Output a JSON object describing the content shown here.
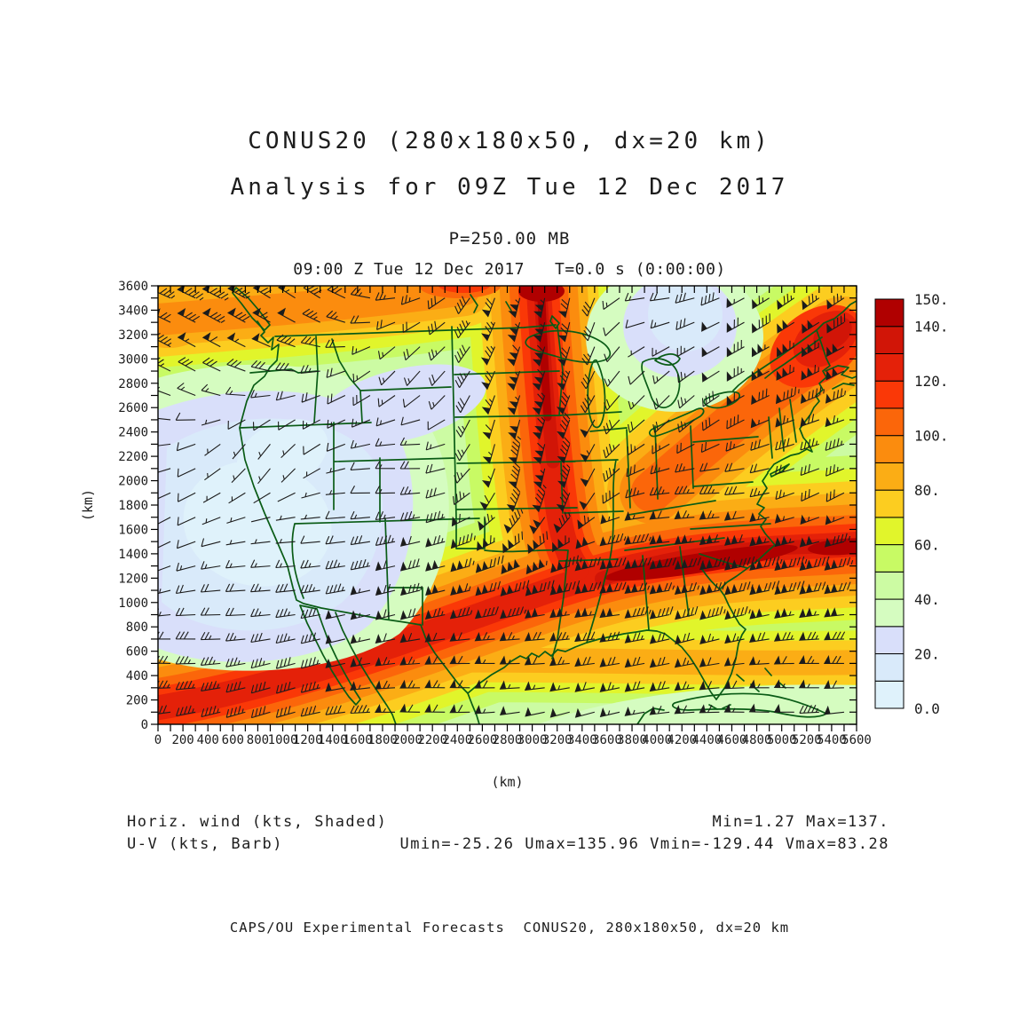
{
  "title": {
    "line1": "CONUS20 (280x180x50, dx=20 km)",
    "line2": "Analysis for 09Z Tue 12 Dec 2017"
  },
  "level_line": "P=250.00 MB",
  "time_line": "09:00 Z Tue 12 Dec 2017   T=0.0 s (0:00:00)",
  "caption": {
    "left1": "Horiz. wind (kts, Shaded)",
    "left2": "U-V (kts, Barb)",
    "right1": "Min=1.27 Max=137.",
    "right2": "Umin=-25.26 Umax=135.96 Vmin=-129.44 Vmax=83.28"
  },
  "footer": "CAPS/OU Experimental Forecasts  CONUS20, 280x180x50, dx=20 km",
  "chart_data": {
    "type": "heatmap",
    "field_shaded": "Horizontal wind speed (kts), shaded",
    "field_barbs": "U-V wind (kts), barbs",
    "pressure_level_mb": 250.0,
    "valid_time": "09:00 Z Tue 12 Dec 2017",
    "forecast_seconds": 0.0,
    "grid": "280x180x50, dx=20 km",
    "axes": {
      "x_label": "(km)",
      "y_label": "(km)",
      "x_min": 0,
      "x_max": 5600,
      "x_tick_step": 100,
      "x_label_step": 200,
      "y_min": 0,
      "y_max": 3600,
      "y_tick_step": 100,
      "y_label_step": 200
    },
    "colorbar": {
      "level_min": 0,
      "level_max": 150,
      "level_step": 10,
      "labels": [
        "0.0",
        "20.",
        "40.",
        "60.",
        "80.",
        "100.",
        "120.",
        "140.",
        "150."
      ],
      "label_values": [
        0,
        20,
        40,
        60,
        80,
        100,
        120,
        140,
        150
      ],
      "colors": [
        "#dff2fb",
        "#d9eafa",
        "#d9dffa",
        "#d5fcc0",
        "#ccfba3",
        "#c8fa64",
        "#e1f52b",
        "#fccd20",
        "#fbad15",
        "#fb8c0e",
        "#fb660a",
        "#fa3807",
        "#e42109",
        "#d11507",
        "#b00000"
      ]
    },
    "stats": {
      "min": 1.27,
      "max": 137.0,
      "umin": -25.26,
      "umax": 135.96,
      "vmin": -129.44,
      "vmax": 83.28
    },
    "jet_features": [
      {
        "name": "southern-westerly-jet",
        "axis_y_km": 1250,
        "x_extent_km": [
          1200,
          5600
        ],
        "peak_kts": 137,
        "direction_from": "WSW"
      },
      {
        "name": "central-southerly-jet",
        "axis_x_km": 3050,
        "y_extent_km": [
          1500,
          3600
        ],
        "peak_kts": 135,
        "direction_from": "SSW"
      },
      {
        "name": "northwest-corner-max",
        "center_km": [
          400,
          3500
        ],
        "peak_kts": 100,
        "direction_from": "NW"
      },
      {
        "name": "northeast-maine-max",
        "center_km": [
          5250,
          3050
        ],
        "peak_kts": 130,
        "direction_from": "SW"
      },
      {
        "name": "southwest-calm",
        "center_km": [
          900,
          1700
        ],
        "min_kts": 1.27
      },
      {
        "name": "great-lakes-calm",
        "center_km": [
          3900,
          3100
        ],
        "min_kts": 15
      },
      {
        "name": "southern-border-band",
        "axis_y_km": 350,
        "peak_kts": 60,
        "direction_from": "W"
      }
    ],
    "barbs": {
      "spacing_km": 200,
      "color": "#1c1c1c"
    }
  },
  "colors": {
    "border": "#0a5c16",
    "frame": "#000000",
    "text": "#1d1d1d"
  }
}
